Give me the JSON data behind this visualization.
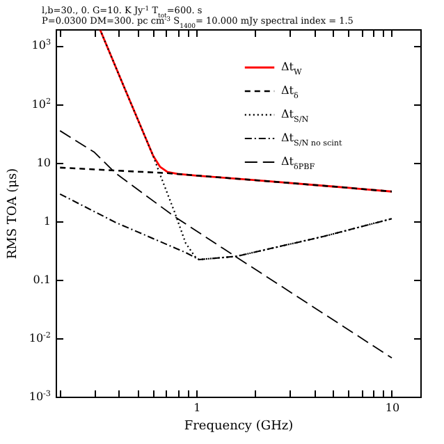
{
  "chart_data": {
    "type": "line",
    "title": "l,b=30., 0.    G=10. K Jy$^{-1}$    T$_{tot}$=600. s",
    "subtitle": "P=0.0300    DM=300. pc cm$^{-3}$  S$_{1400}$=    10.000 mJy    spectral index = 1.5",
    "xlabel": "Frequency (GHz)",
    "ylabel": "RMS TOA (μs)",
    "log": "xy",
    "legend": "top right",
    "grid": false,
    "xlim": [
      0.19,
      14
    ],
    "ylim": [
      0.001,
      1900
    ],
    "xticks": [
      {
        "value": 0.2,
        "label": null
      },
      {
        "value": 0.3,
        "label": null
      },
      {
        "value": 0.4,
        "label": null
      },
      {
        "value": 0.5,
        "label": null
      },
      {
        "value": 0.6,
        "label": null
      },
      {
        "value": 0.7,
        "label": null
      },
      {
        "value": 0.8,
        "label": null
      },
      {
        "value": 0.9,
        "label": null
      },
      1,
      {
        "value": 2,
        "label": null
      },
      {
        "value": 3,
        "label": null
      },
      {
        "value": 4,
        "label": null
      },
      {
        "value": 5,
        "label": null
      },
      {
        "value": 6,
        "label": null
      },
      {
        "value": 7,
        "label": null
      },
      {
        "value": 8,
        "label": null
      },
      {
        "value": 9,
        "label": null
      },
      10
    ],
    "yticks": [
      {
        "value": 0.001,
        "label": "10$^{-3}$"
      },
      {
        "value": 0.01,
        "label": "10$^{-2}$"
      },
      0.1,
      1,
      10,
      {
        "value": 100,
        "label": "10$^{2}$"
      },
      {
        "value": 1000,
        "label": "10$^{3}$"
      }
    ],
    "series": [
      {
        "name": "Δt$_{W}$",
        "color": "#ff0000",
        "line_style": "solid",
        "x": [
          0.32,
          0.43,
          0.6,
          0.65,
          0.71,
          0.8,
          1,
          2,
          5,
          10
        ],
        "values": [
          1900,
          180,
          13,
          8.5,
          6.9,
          6.4,
          6.0,
          5.0,
          3.9,
          3.2
        ]
      },
      {
        "name": "Δt$_{δ}$",
        "color": "#000000",
        "line_style": "dashed",
        "x": [
          0.2,
          0.5,
          0.71,
          1,
          2,
          5,
          10
        ],
        "values": [
          8.2,
          7.0,
          6.6,
          6.0,
          5.0,
          3.9,
          3.2
        ]
      },
      {
        "name": "Δt$_{S/N}$",
        "color": "#000000",
        "line_style": "dotted",
        "x": [
          0.32,
          0.43,
          0.6,
          0.65,
          0.77,
          0.88,
          0.98,
          1.03,
          1.6,
          4.5,
          10
        ],
        "values": [
          1900,
          180,
          13,
          6.3,
          1.46,
          0.42,
          0.25,
          0.22,
          0.25,
          0.55,
          1.1
        ]
      },
      {
        "name": "Δt$_{S/N no scint}$",
        "color": "#000000",
        "line_style": "dashdot",
        "x": [
          0.2,
          0.385,
          0.88,
          1.03,
          1.6,
          4.5,
          10
        ],
        "values": [
          2.9,
          0.95,
          0.29,
          0.22,
          0.25,
          0.55,
          1.1
        ]
      },
      {
        "name": "Δt$_{δPBF}$",
        "color": "#000000",
        "line_style": "longdash",
        "x": [
          0.2,
          0.3,
          0.385,
          0.77,
          1.37,
          10
        ],
        "values": [
          35,
          15,
          6.6,
          1.2,
          0.34,
          0.0046
        ]
      }
    ]
  }
}
